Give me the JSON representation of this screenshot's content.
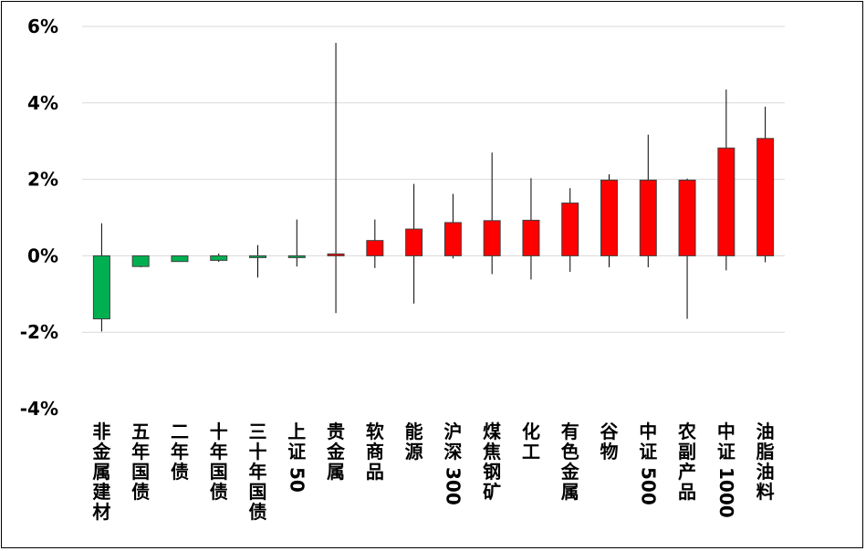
{
  "chart_data": {
    "type": "candlestick-bar",
    "title": "",
    "xlabel": "",
    "ylabel": "",
    "ylim": [
      -4,
      6
    ],
    "y_ticks": [
      6,
      4,
      2,
      0,
      -2,
      -4
    ],
    "y_tick_labels": [
      "6%",
      "4%",
      "2%",
      "0%",
      "-2%",
      "-4%"
    ],
    "grid": true,
    "colors": {
      "positive": "#ff0000",
      "negative": "#00b050",
      "wick": "#000000",
      "border": "#404040",
      "grid": "#d9d9d9"
    },
    "categories": [
      "非金属建材",
      "五年国债",
      "二年债",
      "十年国债",
      "三十年国债",
      "上证50",
      "贵金属",
      "软商品",
      "能源",
      "沪深300",
      "煤焦钢矿",
      "化工",
      "有色金属",
      "谷物",
      "中证500",
      "农副产品",
      "中证1000",
      "油脂油料"
    ],
    "values": [
      -1.65,
      -0.28,
      -0.15,
      -0.12,
      -0.04,
      -0.03,
      0.05,
      0.4,
      0.7,
      0.87,
      0.92,
      0.93,
      1.38,
      1.98,
      1.98,
      1.98,
      2.82,
      3.07
    ],
    "highs": [
      0.85,
      0.0,
      0.0,
      0.06,
      0.28,
      0.95,
      5.57,
      0.95,
      1.88,
      1.62,
      2.7,
      2.03,
      1.77,
      2.13,
      3.17,
      2.02,
      4.35,
      3.9
    ],
    "lows": [
      -1.98,
      -0.3,
      -0.15,
      -0.16,
      -0.57,
      -0.28,
      -1.5,
      -0.32,
      -1.25,
      -0.07,
      -0.48,
      -0.62,
      -0.42,
      -0.3,
      -0.3,
      -1.65,
      -0.38,
      -0.17
    ]
  }
}
